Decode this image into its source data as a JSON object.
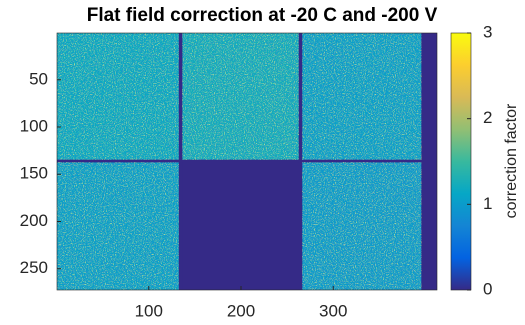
{
  "chart_data": {
    "type": "heatmap",
    "title": "Flat field correction at -20 C and -200 V",
    "xlim": [
      0.5,
      412.5
    ],
    "ylim": [
      0.5,
      272.5
    ],
    "y_reversed": true,
    "xticks": [
      100,
      200,
      300
    ],
    "yticks": [
      50,
      100,
      150,
      200,
      250
    ],
    "fill_value": 0,
    "modules": [
      {
        "x": [
          1,
          132
        ],
        "y": [
          1,
          134
        ],
        "value": 1.15
      },
      {
        "x": [
          137,
          262
        ],
        "y": [
          1,
          134
        ],
        "value": 1.2
      },
      {
        "x": [
          267,
          395
        ],
        "y": [
          1,
          134
        ],
        "value": 1.05
      },
      {
        "x": [
          1,
          132
        ],
        "y": [
          138,
          272
        ],
        "value": 1.05
      },
      {
        "x": [
          137,
          262
        ],
        "y": [
          138,
          272
        ],
        "value": 0
      },
      {
        "x": [
          267,
          395
        ],
        "y": [
          138,
          272
        ],
        "value": 1.0
      }
    ],
    "colormap": "parula",
    "clim": [
      0,
      3
    ],
    "cticks": [
      0,
      1,
      2,
      3
    ],
    "colorbar_label": "correction factor"
  }
}
